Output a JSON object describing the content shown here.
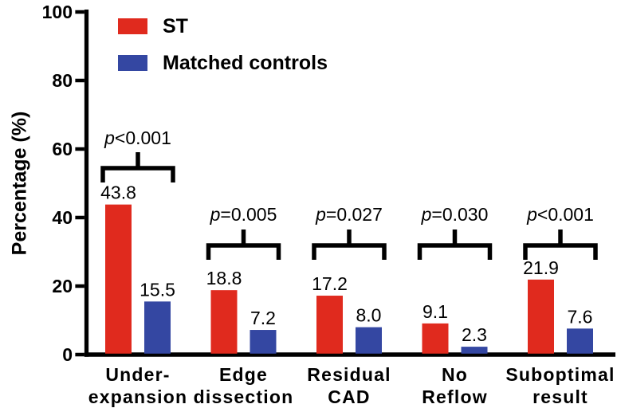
{
  "figure": {
    "background_color": "#ffffff",
    "axis_color": "#000000",
    "text_color": "#000000"
  },
  "chart_data": {
    "type": "bar",
    "title": "",
    "xlabel": "",
    "ylabel": "Percentage (%)",
    "ylim": [
      0,
      100
    ],
    "yticks": [
      0,
      20,
      40,
      60,
      80,
      100
    ],
    "grid": false,
    "legend_position": "upper-left inside plot",
    "categories": [
      "Under-\nexpansion",
      "Edge\ndissection",
      "Residual\nCAD",
      "No\nReflow",
      "Suboptimal\nresult"
    ],
    "series": [
      {
        "name": "ST",
        "color": "#e02a1e",
        "values": [
          43.8,
          18.8,
          17.2,
          9.1,
          21.9
        ]
      },
      {
        "name": "Matched controls",
        "color": "#3447a2",
        "values": [
          15.5,
          7.2,
          8.0,
          2.3,
          7.6
        ]
      }
    ],
    "bar_value_labels": [
      "43.8",
      "15.5",
      "18.8",
      "7.2",
      "17.2",
      "8.0",
      "9.1",
      "2.3",
      "21.9",
      "7.6"
    ],
    "p_values": [
      "p<0.001",
      "p=0.005",
      "p=0.027",
      "p=0.030",
      "p<0.001"
    ]
  }
}
